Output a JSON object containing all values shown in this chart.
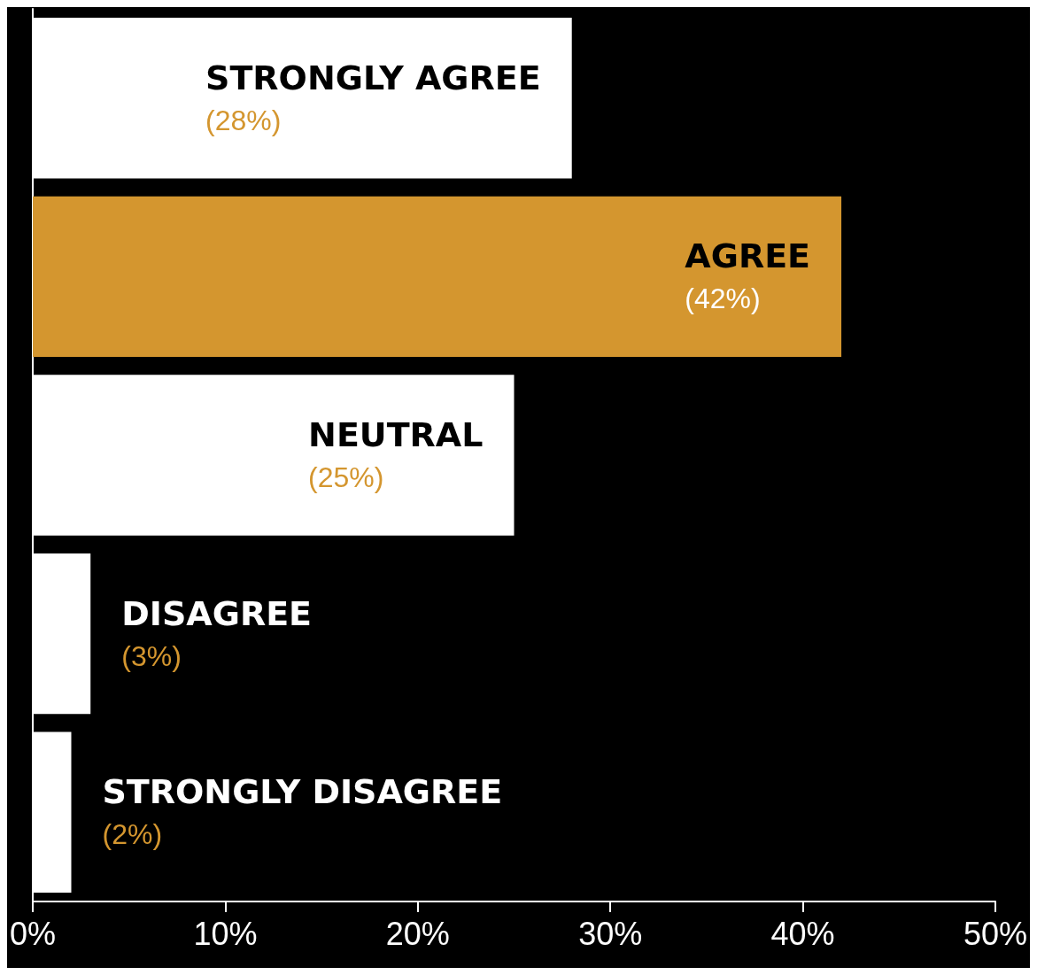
{
  "chart_data": {
    "type": "bar",
    "orientation": "horizontal",
    "categories": [
      "STRONGLY AGREE",
      "AGREE",
      "NEUTRAL",
      "DISAGREE",
      "STRONGLY DISAGREE"
    ],
    "values": [
      28,
      42,
      25,
      3,
      2
    ],
    "colors": [
      "#ffffff",
      "#d4962f",
      "#ffffff",
      "#ffffff",
      "#ffffff"
    ],
    "value_labels": [
      "(28%)",
      "(42%)",
      "(25%)",
      "(3%)",
      "(2%)"
    ],
    "xlim": [
      0,
      50
    ],
    "xticks": [
      {
        "value": 0,
        "label": "0%"
      },
      {
        "value": 10,
        "label": "10%"
      },
      {
        "value": 20,
        "label": "20%"
      },
      {
        "value": 30,
        "label": "30%"
      },
      {
        "value": 40,
        "label": "40%"
      },
      {
        "value": 50,
        "label": "50%"
      }
    ],
    "grid": false
  }
}
